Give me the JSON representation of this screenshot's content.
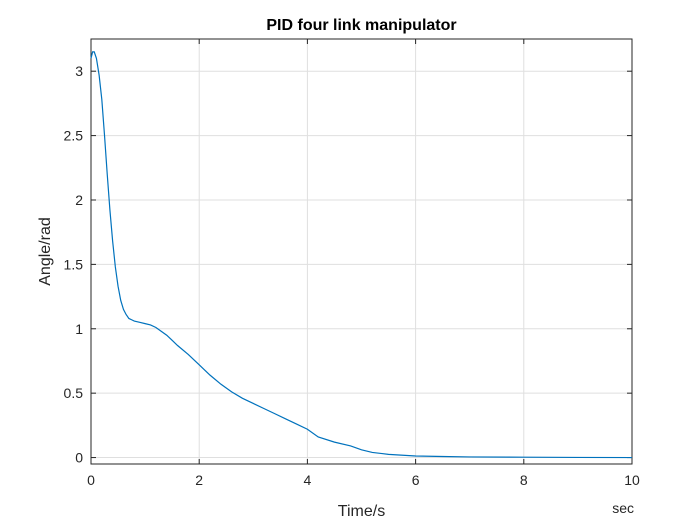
{
  "chart_data": {
    "type": "line",
    "title": "PID four link manipulator",
    "xlabel": "Time/s",
    "ylabel": "Angle/rad",
    "x_unit_label": "sec",
    "xlim": [
      0,
      10
    ],
    "ylim": [
      -0.05,
      3.25
    ],
    "xticks": [
      0,
      2,
      4,
      6,
      8,
      10
    ],
    "yticks": [
      0,
      0.5,
      1,
      1.5,
      2,
      2.5,
      3
    ],
    "grid": true,
    "line_color": "#0072BD",
    "series": [
      {
        "x": [
          0,
          0.03,
          0.06,
          0.1,
          0.15,
          0.2,
          0.25,
          0.3,
          0.35,
          0.4,
          0.45,
          0.5,
          0.55,
          0.6,
          0.65,
          0.7,
          0.75,
          0.8,
          0.9,
          1.0,
          1.1,
          1.2,
          1.3,
          1.4,
          1.5,
          1.6,
          1.8,
          2.0,
          2.2,
          2.4,
          2.6,
          2.8,
          3.0,
          3.2,
          3.4,
          3.6,
          3.8,
          4.0,
          4.2,
          4.5,
          4.8,
          5.0,
          5.2,
          5.5,
          6.0,
          6.5,
          7.0,
          8.0,
          9.0,
          10.0
        ],
        "y": [
          3.1,
          3.15,
          3.15,
          3.1,
          2.97,
          2.78,
          2.5,
          2.2,
          1.92,
          1.68,
          1.48,
          1.33,
          1.22,
          1.15,
          1.11,
          1.08,
          1.07,
          1.06,
          1.05,
          1.04,
          1.03,
          1.01,
          0.98,
          0.95,
          0.91,
          0.87,
          0.8,
          0.72,
          0.64,
          0.57,
          0.51,
          0.46,
          0.42,
          0.38,
          0.34,
          0.3,
          0.26,
          0.22,
          0.16,
          0.12,
          0.09,
          0.06,
          0.04,
          0.025,
          0.012,
          0.008,
          0.005,
          0.003,
          0.001,
          0.0
        ]
      }
    ]
  }
}
